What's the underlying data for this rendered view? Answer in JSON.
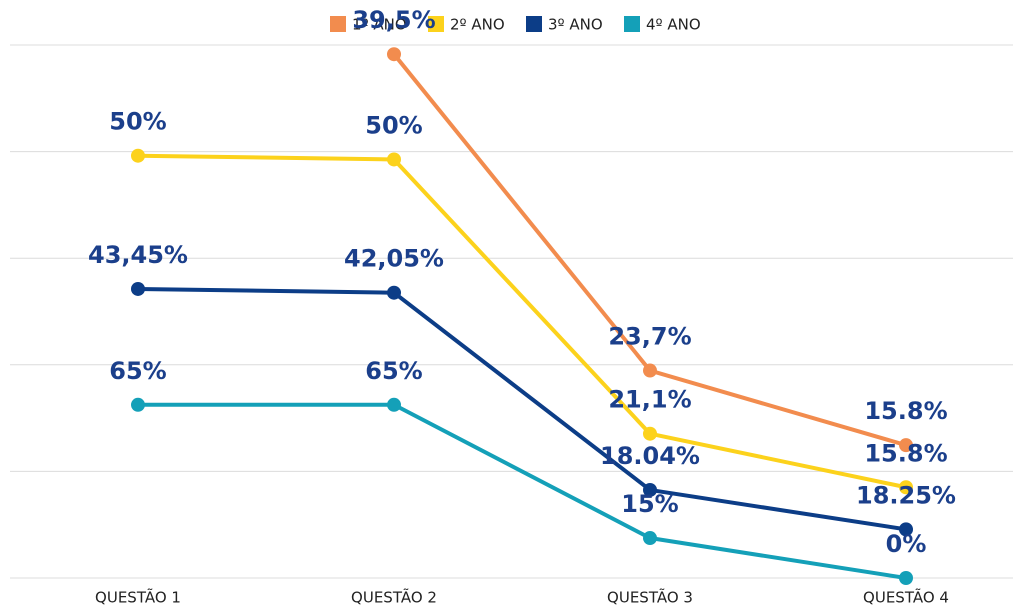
{
  "chart_data": {
    "type": "line",
    "stacked": true,
    "categories": [
      "QUESTÃO 1",
      "QUESTÃO 2",
      "QUESTÃO 3",
      "QUESTÃO 4"
    ],
    "series": [
      {
        "name": "1º ANO",
        "color": "#f28c4e",
        "values": [
          null,
          39.5,
          23.7,
          15.8
        ],
        "value_labels": [
          null,
          "39,5%",
          "23,7%",
          "15.8%"
        ]
      },
      {
        "name": "2º ANO",
        "color": "#fcd21c",
        "values": [
          50,
          50,
          21.1,
          15.8
        ],
        "value_labels": [
          "50%",
          "50%",
          "21,1%",
          "15.8%"
        ]
      },
      {
        "name": "3º ANO",
        "color": "#0c3d87",
        "values": [
          43.45,
          42.05,
          18.04,
          18.25
        ],
        "value_labels": [
          "43,45%",
          "42,05%",
          "18.04%",
          "18.25%"
        ]
      },
      {
        "name": "4º ANO",
        "color": "#14a0b8",
        "values": [
          65,
          65,
          15,
          0
        ],
        "value_labels": [
          "65%",
          "65%",
          "15%",
          "0%"
        ]
      }
    ],
    "ylim": [
      0,
      200
    ],
    "yticks": [
      0,
      40,
      80,
      120,
      160,
      200
    ],
    "grid": true,
    "legend": "top"
  }
}
